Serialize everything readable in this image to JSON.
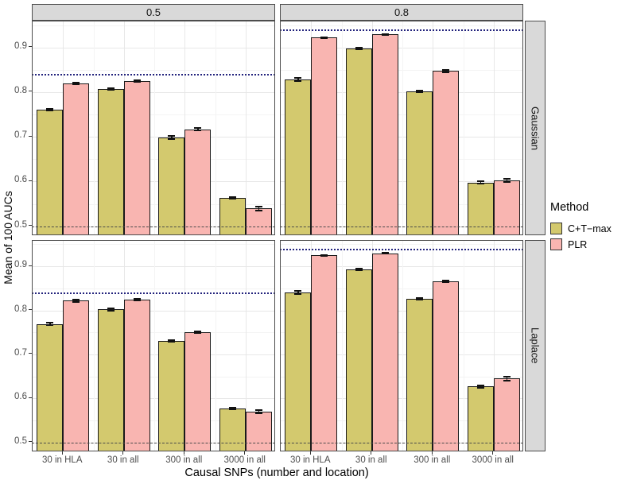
{
  "legend": {
    "title": "Method",
    "entries": [
      {
        "label": "C+T−max",
        "color": "#d3c96e"
      },
      {
        "label": "PLR",
        "color": "#f9b5b1"
      }
    ]
  },
  "chart_data": {
    "type": "bar",
    "facet_columns": [
      "0.5",
      "0.8"
    ],
    "facet_rows": [
      "Gaussian",
      "Laplace"
    ],
    "categories": [
      "30 in HLA",
      "30 in all",
      "300 in all",
      "3000 in all"
    ],
    "series_names": [
      "C+T-max",
      "PLR"
    ],
    "colors": [
      "#d3c96e",
      "#f9b5b1"
    ],
    "xlabel": "Causal SNPs (number and location)",
    "ylabel": "Mean of 100 AUCs",
    "ylim": [
      0.478,
      0.958
    ],
    "yticks": [
      0.5,
      0.6,
      0.7,
      0.8,
      0.9
    ],
    "grid": true,
    "legend_position": "right",
    "error_bars": true,
    "reference_lines": {
      "dashed": 0.5,
      "dotted_by_column": [
        0.84,
        0.94
      ]
    },
    "panels": [
      {
        "row": 0,
        "col": 0,
        "row_label": "Gaussian",
        "col_label": "0.5",
        "dotted_line": 0.84,
        "series": [
          {
            "name": "C+T-max",
            "values": [
              0.761,
              0.807,
              0.699,
              0.563
            ],
            "errors": [
              0.004,
              0.004,
              0.005,
              0.004
            ]
          },
          {
            "name": "PLR",
            "values": [
              0.819,
              0.825,
              0.717,
              0.54
            ],
            "errors": [
              0.004,
              0.004,
              0.005,
              0.006
            ]
          }
        ]
      },
      {
        "row": 0,
        "col": 1,
        "row_label": "Gaussian",
        "col_label": "0.8",
        "dotted_line": 0.94,
        "series": [
          {
            "name": "C+T-max",
            "values": [
              0.828,
              0.898,
              0.802,
              0.598
            ],
            "errors": [
              0.005,
              0.004,
              0.004,
              0.004
            ]
          },
          {
            "name": "PLR",
            "values": [
              0.922,
              0.929,
              0.847,
              0.602
            ],
            "errors": [
              0.003,
              0.003,
              0.004,
              0.005
            ]
          }
        ]
      },
      {
        "row": 1,
        "col": 0,
        "row_label": "Laplace",
        "col_label": "0.5",
        "dotted_line": 0.84,
        "series": [
          {
            "name": "C+T-max",
            "values": [
              0.769,
              0.802,
              0.731,
              0.577
            ],
            "errors": [
              0.005,
              0.004,
              0.004,
              0.004
            ]
          },
          {
            "name": "PLR",
            "values": [
              0.822,
              0.824,
              0.75,
              0.57
            ],
            "errors": [
              0.004,
              0.004,
              0.004,
              0.005
            ]
          }
        ]
      },
      {
        "row": 1,
        "col": 1,
        "row_label": "Laplace",
        "col_label": "0.8",
        "dotted_line": 0.94,
        "series": [
          {
            "name": "C+T-max",
            "values": [
              0.841,
              0.893,
              0.826,
              0.627
            ],
            "errors": [
              0.005,
              0.004,
              0.004,
              0.005
            ]
          },
          {
            "name": "PLR",
            "values": [
              0.925,
              0.93,
              0.866,
              0.645
            ],
            "errors": [
              0.003,
              0.003,
              0.004,
              0.006
            ]
          }
        ]
      }
    ]
  }
}
